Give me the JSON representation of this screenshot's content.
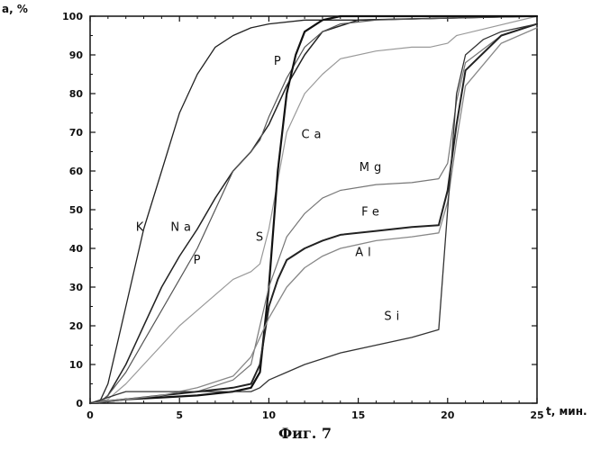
{
  "caption": "Фиг. 7",
  "chart_data": {
    "type": "line",
    "title": "",
    "xlabel": "t, мин.",
    "ylabel": "a, %",
    "xlim": [
      0,
      25
    ],
    "ylim": [
      0,
      100
    ],
    "xticks": [
      "0",
      "5",
      "10",
      "15",
      "20",
      "25"
    ],
    "yticks": [
      "0",
      "10",
      "20",
      "30",
      "40",
      "50",
      "60",
      "70",
      "80",
      "90",
      "100"
    ],
    "grid": false,
    "legend": "inline labels on curves",
    "series": [
      {
        "name": "K",
        "x": [
          0,
          0.5,
          1,
          1.5,
          2,
          3,
          4,
          5,
          6,
          7,
          8,
          9,
          10,
          12,
          15,
          20,
          25
        ],
        "y": [
          0,
          0,
          5,
          15,
          25,
          45,
          60,
          75,
          85,
          92,
          95,
          97,
          98,
          99,
          99,
          99.5,
          100
        ]
      },
      {
        "name": "Na",
        "x": [
          0,
          0.5,
          1,
          2,
          3,
          4,
          5,
          6,
          7,
          8,
          9,
          10,
          11,
          12,
          13,
          15,
          20,
          25
        ],
        "y": [
          0,
          0,
          2,
          10,
          20,
          30,
          38,
          45,
          53,
          60,
          65,
          72,
          82,
          90,
          96,
          99,
          99.5,
          100
        ]
      },
      {
        "name": "P",
        "x": [
          0,
          0.5,
          1,
          2,
          3,
          4,
          5,
          6,
          7,
          8,
          9,
          9.5,
          10,
          11,
          12,
          13,
          14,
          16,
          20,
          25
        ],
        "y": [
          0,
          0,
          2,
          8,
          16,
          24,
          32,
          40,
          50,
          60,
          65,
          68,
          74,
          84,
          92,
          96,
          98,
          99,
          99.5,
          100
        ]
      },
      {
        "name": "S",
        "x": [
          0,
          1,
          2,
          3,
          4,
          5,
          6,
          7,
          8,
          9,
          9.5,
          10,
          11,
          12,
          13,
          14,
          16,
          18,
          19,
          20,
          20.5,
          25
        ],
        "y": [
          0,
          1,
          5,
          10,
          15,
          20,
          24,
          28,
          32,
          34,
          36,
          45,
          70,
          80,
          85,
          89,
          91,
          92,
          92,
          93,
          95,
          100
        ]
      },
      {
        "name": "Ca",
        "x": [
          0,
          2,
          4,
          6,
          8,
          9,
          9.5,
          10,
          10.5,
          11,
          11.5,
          12,
          13,
          14,
          16,
          20,
          25
        ],
        "y": [
          0,
          1,
          1.5,
          2,
          3,
          4,
          8,
          30,
          60,
          80,
          90,
          96,
          99,
          100,
          100,
          100,
          100
        ]
      },
      {
        "name": "Mg",
        "x": [
          0,
          2,
          4,
          6,
          8,
          9,
          10,
          11,
          12,
          13,
          14,
          16,
          18,
          19.5,
          20,
          20.5,
          21,
          23,
          25
        ],
        "y": [
          0,
          1,
          2,
          3,
          6,
          10,
          30,
          43,
          49,
          53,
          55,
          56.5,
          57,
          58,
          62,
          78,
          88,
          95,
          98
        ]
      },
      {
        "name": "Fe",
        "x": [
          0,
          2,
          4,
          6,
          8,
          9,
          9.5,
          10,
          10.5,
          11,
          12,
          13,
          14,
          16,
          18,
          19.5,
          20,
          20.5,
          21,
          23,
          25
        ],
        "y": [
          0,
          1,
          2,
          3,
          4,
          5,
          10,
          25,
          32,
          37,
          40,
          42,
          43.5,
          44.5,
          45.5,
          46,
          55,
          72,
          86,
          95,
          98
        ]
      },
      {
        "name": "Al",
        "x": [
          0,
          2,
          4,
          6,
          8,
          9,
          10,
          11,
          12,
          13,
          14,
          16,
          18,
          19.5,
          20,
          20.5,
          21,
          23,
          25
        ],
        "y": [
          0,
          1,
          2,
          4,
          7,
          12,
          22,
          30,
          35,
          38,
          40,
          42,
          43,
          44,
          52,
          68,
          82,
          93,
          97
        ]
      },
      {
        "name": "Si",
        "x": [
          0,
          2,
          4,
          6,
          8,
          9,
          9.5,
          10,
          11,
          12,
          13,
          14,
          16,
          18,
          19.5,
          20,
          20.5,
          21,
          22,
          23,
          25
        ],
        "y": [
          0,
          3,
          3,
          3,
          3,
          3,
          4,
          6,
          8,
          10,
          11.5,
          13,
          15,
          17,
          19,
          50,
          80,
          90,
          94,
          96,
          98
        ]
      }
    ],
    "labels": [
      {
        "text": "K",
        "x": 2.9,
        "y": 44.5
      },
      {
        "text": "Na",
        "x": 5.2,
        "y": 44.5
      },
      {
        "text": "P",
        "x": 6.1,
        "y": 36
      },
      {
        "text": "P",
        "x": 10.6,
        "y": 87.5
      },
      {
        "text": "S",
        "x": 9.6,
        "y": 42
      },
      {
        "text": "Ca",
        "x": 12.5,
        "y": 68.5
      },
      {
        "text": "Mg",
        "x": 15.8,
        "y": 60
      },
      {
        "text": "Fe",
        "x": 15.8,
        "y": 48.5
      },
      {
        "text": "Al",
        "x": 15.4,
        "y": 38
      },
      {
        "text": "Si",
        "x": 17.0,
        "y": 21.5
      }
    ]
  }
}
